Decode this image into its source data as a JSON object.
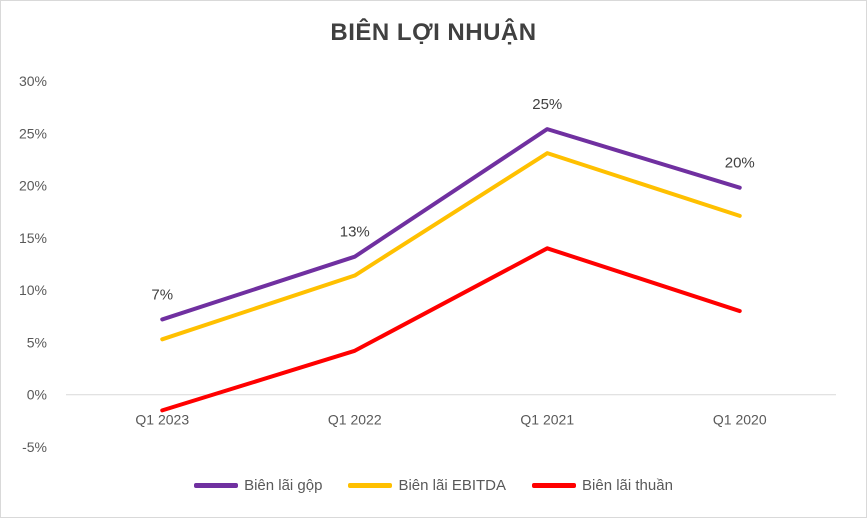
{
  "chart_data": {
    "type": "line",
    "title": "BIÊN LỢI NHUẬN",
    "categories": [
      "Q1 2023",
      "Q1 2022",
      "Q1 2021",
      "Q1 2020"
    ],
    "y_ticks": [
      "30%",
      "25%",
      "20%",
      "15%",
      "10%",
      "5%",
      "0%",
      "-5%"
    ],
    "ylim": [
      -5,
      30
    ],
    "grid": false,
    "legend_position": "bottom",
    "series": [
      {
        "name": "Biên lãi gộp",
        "color": "#7030a0",
        "values": [
          7.2,
          13.2,
          25.4,
          19.8
        ],
        "labels": [
          "7%",
          "13%",
          "25%",
          "20%"
        ]
      },
      {
        "name": "Biên lãi EBITDA",
        "color": "#ffc000",
        "values": [
          5.3,
          11.4,
          23.1,
          17.1
        ]
      },
      {
        "name": "Biên lãi thuần",
        "color": "#ff0000",
        "values": [
          -1.5,
          4.2,
          14.0,
          8.0
        ]
      }
    ]
  }
}
